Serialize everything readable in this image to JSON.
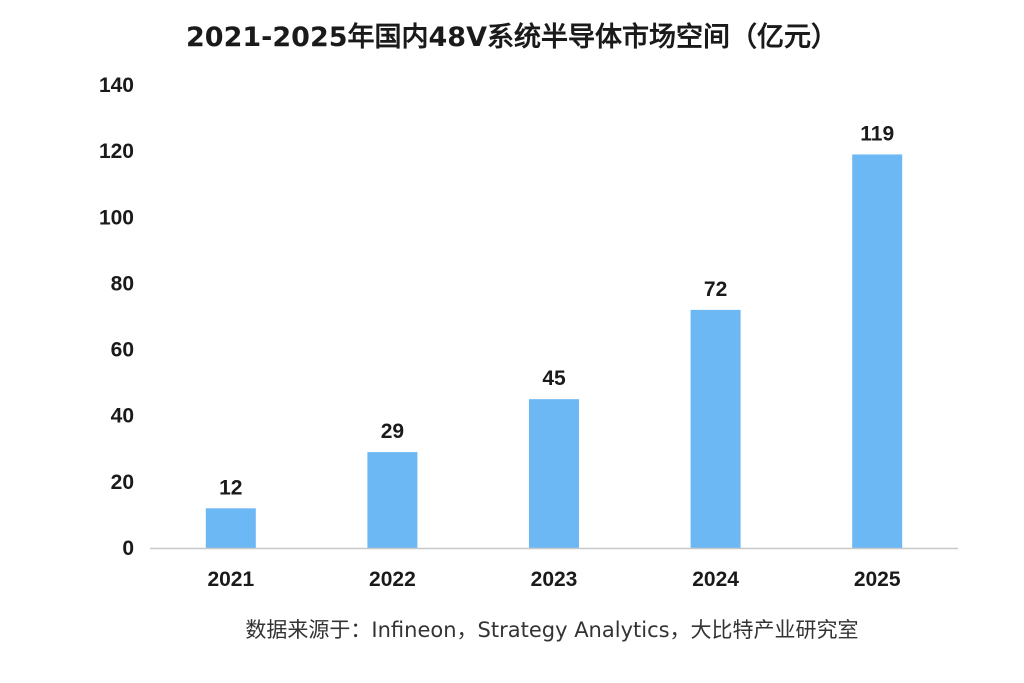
{
  "chart_data": {
    "type": "bar",
    "title": "2021-2025年国内48V系统半导体市场空间（亿元）",
    "categories": [
      "2021",
      "2022",
      "2023",
      "2024",
      "2025"
    ],
    "values": [
      12,
      29,
      45,
      72,
      119
    ],
    "data_labels": [
      "12",
      "29",
      "45",
      "72",
      "119"
    ],
    "yticks": [
      "0",
      "20",
      "40",
      "60",
      "80",
      "100",
      "120",
      "140"
    ],
    "ylim": [
      0,
      140
    ],
    "xlabel": "",
    "ylabel": "",
    "grid": false,
    "bar_color": "#6cb8f5",
    "axis_color": "#c8c8c8",
    "source": "数据来源于：Infineon，Strategy Analytics，大比特产业研究室"
  }
}
